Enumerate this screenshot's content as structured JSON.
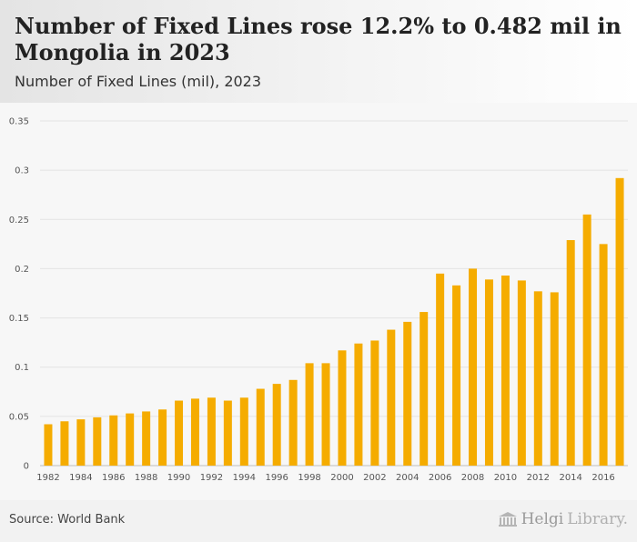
{
  "header": {
    "title": "Number of Fixed Lines rose 12.2% to 0.482 mil in Mongolia in 2023",
    "subtitle": "Number of Fixed Lines (mil), 2023"
  },
  "footer": {
    "source": "Source: World Bank",
    "logo_helgi": "Helgi",
    "logo_library": "Library.",
    "logo_icon": "library-building-icon"
  },
  "chart_data": {
    "type": "bar",
    "color": "#f5ac00",
    "categories": [
      "1982",
      "1983",
      "1984",
      "1985",
      "1986",
      "1987",
      "1988",
      "1989",
      "1990",
      "1991",
      "1992",
      "1993",
      "1994",
      "1995",
      "1996",
      "1997",
      "1998",
      "1999",
      "2000",
      "2001",
      "2002",
      "2003",
      "2004",
      "2005",
      "2006",
      "2007",
      "2008",
      "2009",
      "2010",
      "2011",
      "2012",
      "2013",
      "2014",
      "2015",
      "2016",
      "2017"
    ],
    "values": [
      0.042,
      0.045,
      0.047,
      0.049,
      0.051,
      0.053,
      0.055,
      0.057,
      0.066,
      0.068,
      0.069,
      0.066,
      0.069,
      0.078,
      0.083,
      0.087,
      0.104,
      0.104,
      0.117,
      0.124,
      0.127,
      0.138,
      0.146,
      0.156,
      0.195,
      0.183,
      0.2,
      0.189,
      0.193,
      0.188,
      0.177,
      0.176,
      0.229,
      0.255,
      0.225,
      0.292
    ],
    "x_tick_labels": [
      "1982",
      "1984",
      "1986",
      "1988",
      "1990",
      "1992",
      "1994",
      "1996",
      "1998",
      "2000",
      "2002",
      "2004",
      "2006",
      "2008",
      "2010",
      "2012",
      "2014",
      "2016"
    ],
    "y_ticks": [
      0,
      0.05,
      0.1,
      0.15,
      0.2,
      0.25,
      0.3,
      0.35
    ],
    "y_tick_labels": [
      "0",
      "0.05",
      "0.1",
      "0.15",
      "0.2",
      "0.25",
      "0.3",
      "0.35"
    ],
    "ylim": [
      0,
      0.35
    ],
    "grid": true
  }
}
